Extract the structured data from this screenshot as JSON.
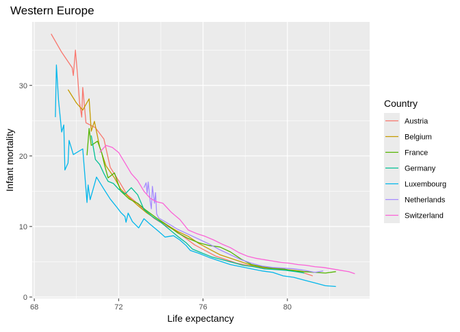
{
  "chart_data": {
    "type": "line",
    "title": "Western Europe",
    "xlabel": "Life expectancy",
    "ylabel": "Infant mortality",
    "xlim": [
      67.9,
      83.9
    ],
    "ylim": [
      -0.2,
      39
    ],
    "x_ticks": [
      68,
      72,
      76,
      80
    ],
    "y_ticks": [
      0,
      10,
      20,
      30
    ],
    "grid": true,
    "legend": {
      "title": "Country",
      "position": "right"
    },
    "series": [
      {
        "name": "Austria",
        "color": "#F8766D",
        "points": [
          [
            68.8,
            37.3
          ],
          [
            69.3,
            34.7
          ],
          [
            69.8,
            32.5
          ],
          [
            69.85,
            31.4
          ],
          [
            69.95,
            35.0
          ],
          [
            70.05,
            31.5
          ],
          [
            70.15,
            27.5
          ],
          [
            70.25,
            25.5
          ],
          [
            70.3,
            29.7
          ],
          [
            70.45,
            24.7
          ],
          [
            70.9,
            24.0
          ],
          [
            71.3,
            22.4
          ],
          [
            71.6,
            18.4
          ],
          [
            72.0,
            16.5
          ],
          [
            72.4,
            14.5
          ],
          [
            72.8,
            13.5
          ],
          [
            73.2,
            12.4
          ],
          [
            73.7,
            11.1
          ],
          [
            74.2,
            10.2
          ],
          [
            74.7,
            9.4
          ],
          [
            75.2,
            8.3
          ],
          [
            75.6,
            7.4
          ],
          [
            76.1,
            6.6
          ],
          [
            76.6,
            5.8
          ],
          [
            77.1,
            5.3
          ],
          [
            77.6,
            4.8
          ],
          [
            78.1,
            4.5
          ],
          [
            78.6,
            4.2
          ],
          [
            79.1,
            4.1
          ],
          [
            79.6,
            3.9
          ],
          [
            80.1,
            3.8
          ],
          [
            80.6,
            3.6
          ],
          [
            81.2,
            3.0
          ]
        ]
      },
      {
        "name": "Belgium",
        "color": "#C49A00",
        "points": [
          [
            69.6,
            29.4
          ],
          [
            70.0,
            27.5
          ],
          [
            70.3,
            26.5
          ],
          [
            70.6,
            28.1
          ],
          [
            70.7,
            23.5
          ],
          [
            70.85,
            24.9
          ],
          [
            71.1,
            21.3
          ],
          [
            71.4,
            18.6
          ],
          [
            71.8,
            16.9
          ],
          [
            72.1,
            15.3
          ],
          [
            72.5,
            14.1
          ],
          [
            72.9,
            13.0
          ],
          [
            73.3,
            12.0
          ],
          [
            73.8,
            11.0
          ],
          [
            74.3,
            10.2
          ],
          [
            74.8,
            9.3
          ],
          [
            75.3,
            8.6
          ],
          [
            75.8,
            7.6
          ],
          [
            76.3,
            6.8
          ],
          [
            76.8,
            6.0
          ],
          [
            77.3,
            5.5
          ],
          [
            77.8,
            5.0
          ],
          [
            78.3,
            4.5
          ],
          [
            78.8,
            4.2
          ],
          [
            79.3,
            4.0
          ],
          [
            79.8,
            3.9
          ],
          [
            80.3,
            3.8
          ],
          [
            80.8,
            3.6
          ],
          [
            81.3,
            3.5
          ]
        ]
      },
      {
        "name": "France",
        "color": "#53B400",
        "points": [
          [
            70.5,
            20.1
          ],
          [
            70.6,
            23.9
          ],
          [
            70.7,
            21.5
          ],
          [
            71.0,
            22.1
          ],
          [
            71.2,
            20.4
          ],
          [
            71.35,
            18.5
          ],
          [
            71.5,
            16.9
          ],
          [
            71.8,
            17.6
          ],
          [
            72.1,
            15.0
          ],
          [
            72.5,
            13.9
          ],
          [
            72.9,
            13.3
          ],
          [
            73.3,
            12.3
          ],
          [
            73.8,
            11.2
          ],
          [
            74.3,
            10.2
          ],
          [
            74.8,
            9.1
          ],
          [
            75.3,
            8.3
          ],
          [
            75.8,
            7.7
          ],
          [
            76.3,
            7.3
          ],
          [
            76.8,
            7.1
          ],
          [
            77.3,
            6.4
          ],
          [
            77.8,
            5.4
          ],
          [
            78.3,
            4.6
          ],
          [
            78.8,
            4.3
          ],
          [
            79.3,
            4.1
          ],
          [
            79.8,
            4.0
          ],
          [
            80.3,
            3.7
          ],
          [
            80.8,
            3.6
          ],
          [
            81.3,
            3.5
          ],
          [
            81.8,
            3.4
          ],
          [
            82.3,
            3.6
          ]
        ]
      },
      {
        "name": "Germany",
        "color": "#00C094",
        "points": [
          [
            70.7,
            22.9
          ],
          [
            70.9,
            19.5
          ],
          [
            71.1,
            18.8
          ],
          [
            71.3,
            17.5
          ],
          [
            71.5,
            16.4
          ],
          [
            71.75,
            16.1
          ],
          [
            72.0,
            15.3
          ],
          [
            72.3,
            14.6
          ],
          [
            72.6,
            15.5
          ],
          [
            72.9,
            14.5
          ],
          [
            73.2,
            12.4
          ],
          [
            73.6,
            11.4
          ],
          [
            74.0,
            10.6
          ],
          [
            74.4,
            9.6
          ],
          [
            74.8,
            8.6
          ],
          [
            75.2,
            7.7
          ],
          [
            75.5,
            6.8
          ],
          [
            75.9,
            6.3
          ],
          [
            76.4,
            5.7
          ],
          [
            76.9,
            5.3
          ],
          [
            77.4,
            4.9
          ],
          [
            77.9,
            4.5
          ],
          [
            78.4,
            4.3
          ],
          [
            78.9,
            4.0
          ],
          [
            79.4,
            3.9
          ],
          [
            79.9,
            3.8
          ],
          [
            80.4,
            3.6
          ],
          [
            80.8,
            3.4
          ]
        ]
      },
      {
        "name": "Luxembourg",
        "color": "#00B6EB",
        "points": [
          [
            69.0,
            25.5
          ],
          [
            69.05,
            32.9
          ],
          [
            69.15,
            27.9
          ],
          [
            69.3,
            23.4
          ],
          [
            69.4,
            24.4
          ],
          [
            69.45,
            18.0
          ],
          [
            69.6,
            19.0
          ],
          [
            69.65,
            22.2
          ],
          [
            69.85,
            20.2
          ],
          [
            70.3,
            21.0
          ],
          [
            70.5,
            13.4
          ],
          [
            70.55,
            15.9
          ],
          [
            70.65,
            13.8
          ],
          [
            70.95,
            17.0
          ],
          [
            71.3,
            15.3
          ],
          [
            71.6,
            13.9
          ],
          [
            71.95,
            12.6
          ],
          [
            72.1,
            12.0
          ],
          [
            72.3,
            11.4
          ],
          [
            72.35,
            10.6
          ],
          [
            72.45,
            11.9
          ],
          [
            72.65,
            10.7
          ],
          [
            72.95,
            9.8
          ],
          [
            73.2,
            11.1
          ],
          [
            73.5,
            10.3
          ],
          [
            73.9,
            9.3
          ],
          [
            74.2,
            8.5
          ],
          [
            74.6,
            8.7
          ],
          [
            74.9,
            8.1
          ],
          [
            75.2,
            7.3
          ],
          [
            75.4,
            6.6
          ],
          [
            75.8,
            6.2
          ],
          [
            76.3,
            5.6
          ],
          [
            76.8,
            5.1
          ],
          [
            77.3,
            4.6
          ],
          [
            77.8,
            4.3
          ],
          [
            78.3,
            4.0
          ],
          [
            78.8,
            3.7
          ],
          [
            79.3,
            3.5
          ],
          [
            79.8,
            3.0
          ],
          [
            80.3,
            2.8
          ],
          [
            80.8,
            2.4
          ],
          [
            81.3,
            2.0
          ],
          [
            81.8,
            1.6
          ],
          [
            82.3,
            1.5
          ]
        ]
      },
      {
        "name": "Netherlands",
        "color": "#A58AFF",
        "points": [
          [
            73.2,
            15.5
          ],
          [
            73.3,
            16.2
          ],
          [
            73.35,
            14.7
          ],
          [
            73.4,
            16.3
          ],
          [
            73.5,
            13.5
          ],
          [
            73.55,
            12.5
          ],
          [
            73.6,
            15.7
          ],
          [
            73.7,
            13.3
          ],
          [
            73.75,
            14.8
          ],
          [
            73.8,
            11.8
          ],
          [
            73.9,
            11.2
          ],
          [
            74.3,
            10.5
          ],
          [
            74.8,
            9.6
          ],
          [
            75.3,
            8.9
          ],
          [
            75.8,
            8.2
          ],
          [
            76.3,
            7.5
          ],
          [
            76.8,
            6.7
          ],
          [
            77.3,
            6.0
          ],
          [
            77.8,
            5.3
          ],
          [
            78.3,
            4.8
          ],
          [
            78.8,
            4.4
          ],
          [
            79.3,
            4.2
          ],
          [
            79.8,
            4.1
          ],
          [
            80.3,
            4.0
          ],
          [
            80.8,
            3.8
          ],
          [
            81.3,
            3.5
          ],
          [
            81.7,
            3.7
          ]
        ]
      },
      {
        "name": "Switzerland",
        "color": "#FB61D7",
        "points": [
          [
            71.1,
            20.5
          ],
          [
            71.4,
            21.5
          ],
          [
            71.7,
            21.2
          ],
          [
            72.0,
            20.5
          ],
          [
            72.3,
            19.0
          ],
          [
            72.6,
            17.5
          ],
          [
            72.9,
            16.5
          ],
          [
            73.2,
            15.0
          ],
          [
            73.5,
            14.0
          ],
          [
            73.8,
            13.5
          ],
          [
            74.1,
            13.3
          ],
          [
            74.5,
            12.0
          ],
          [
            74.9,
            11.0
          ],
          [
            75.3,
            9.5
          ],
          [
            75.7,
            9.0
          ],
          [
            76.1,
            8.6
          ],
          [
            76.5,
            8.1
          ],
          [
            76.9,
            7.5
          ],
          [
            77.3,
            7.0
          ],
          [
            77.7,
            6.3
          ],
          [
            78.1,
            5.8
          ],
          [
            78.5,
            5.5
          ],
          [
            78.9,
            5.3
          ],
          [
            79.3,
            5.1
          ],
          [
            79.7,
            4.9
          ],
          [
            80.1,
            4.8
          ],
          [
            80.5,
            4.6
          ],
          [
            80.9,
            4.5
          ],
          [
            81.3,
            4.3
          ],
          [
            81.7,
            4.2
          ],
          [
            82.1,
            4.0
          ],
          [
            82.5,
            3.8
          ],
          [
            82.9,
            3.6
          ],
          [
            83.2,
            3.3
          ]
        ]
      }
    ]
  }
}
